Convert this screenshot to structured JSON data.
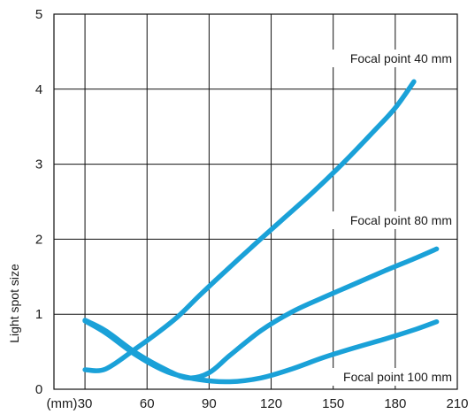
{
  "chart_data": {
    "type": "line",
    "ylabel": "Light spot size",
    "xunit": "(mm)",
    "xlim": [
      30,
      210
    ],
    "ylim": [
      0,
      5
    ],
    "xticks": [
      30,
      60,
      90,
      120,
      150,
      180,
      210
    ],
    "yticks": [
      0,
      1,
      2,
      3,
      4,
      5
    ],
    "grid": true,
    "line_color": "#1aa1d8",
    "series": [
      {
        "name": "Focal point 40 mm",
        "x": [
          30,
          40,
          55,
          65,
          75,
          85,
          95,
          110,
          125,
          140,
          155,
          170,
          180,
          189
        ],
        "y": [
          0.26,
          0.27,
          0.55,
          0.75,
          0.97,
          1.24,
          1.5,
          1.88,
          2.25,
          2.62,
          3.02,
          3.45,
          3.75,
          4.1
        ]
      },
      {
        "name": "Focal point 80 mm",
        "x": [
          30,
          40,
          55,
          70,
          80,
          90,
          100,
          115,
          130,
          145,
          160,
          175,
          190,
          200
        ],
        "y": [
          0.92,
          0.78,
          0.48,
          0.25,
          0.15,
          0.22,
          0.45,
          0.78,
          1.03,
          1.22,
          1.4,
          1.58,
          1.75,
          1.87
        ]
      },
      {
        "name": "Focal point 100 mm",
        "x": [
          30,
          40,
          55,
          70,
          85,
          100,
          115,
          130,
          145,
          160,
          175,
          190,
          200
        ],
        "y": [
          0.91,
          0.75,
          0.45,
          0.23,
          0.13,
          0.1,
          0.15,
          0.27,
          0.42,
          0.55,
          0.67,
          0.8,
          0.9
        ]
      }
    ]
  }
}
